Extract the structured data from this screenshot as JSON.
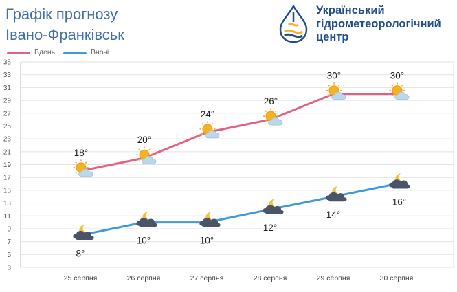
{
  "header": {
    "title_line1": "Графік прогнозу",
    "title_line2": "Івано-Франківськ"
  },
  "organization": {
    "name_lines": [
      "Український",
      "гідрометеорологічний",
      "центр"
    ],
    "logo_icon": "ugmc-drop-logo-icon"
  },
  "colors": {
    "title": "#3f6fa8",
    "org": "#1f4e8c",
    "day": "#e06482",
    "night": "#3f9ad8",
    "grid": "#e2e2e2",
    "sun": "#f5b321",
    "cloud": "#bcd7ea",
    "night_cloud": "#4a5468",
    "moon": "#f3c23a"
  },
  "chart_data": {
    "type": "line",
    "categories": [
      "25 серпня",
      "26 серпня",
      "27 серпня",
      "28 серпня",
      "29 серпня",
      "30 серпня"
    ],
    "series": [
      {
        "name": "Вдень",
        "values": [
          18,
          20,
          24,
          26,
          30,
          30
        ],
        "labels": [
          "18°",
          "20°",
          "24°",
          "26°",
          "30°",
          "30°"
        ],
        "icons": [
          "sun-cloud-icon",
          "sun-cloud-icon",
          "sun-cloud-icon",
          "sun-cloud-icon",
          "sun-cloud-icon",
          "sun-cloud-icon"
        ]
      },
      {
        "name": "Вночі",
        "values": [
          8,
          10,
          10,
          12,
          14,
          16
        ],
        "labels": [
          "8°",
          "10°",
          "10°",
          "12°",
          "14°",
          "16°"
        ],
        "icons": [
          "moon-cloud-icon",
          "moon-cloud-icon",
          "moon-cloud-icon",
          "moon-cloud-icon",
          "moon-cloud-icon",
          "moon-cloud-icon"
        ]
      }
    ],
    "ylim": [
      3,
      35
    ],
    "yticks": [
      3,
      5,
      7,
      9,
      11,
      13,
      15,
      17,
      19,
      21,
      23,
      25,
      27,
      29,
      31,
      33,
      35
    ],
    "grid": true,
    "legend": "top-left"
  }
}
